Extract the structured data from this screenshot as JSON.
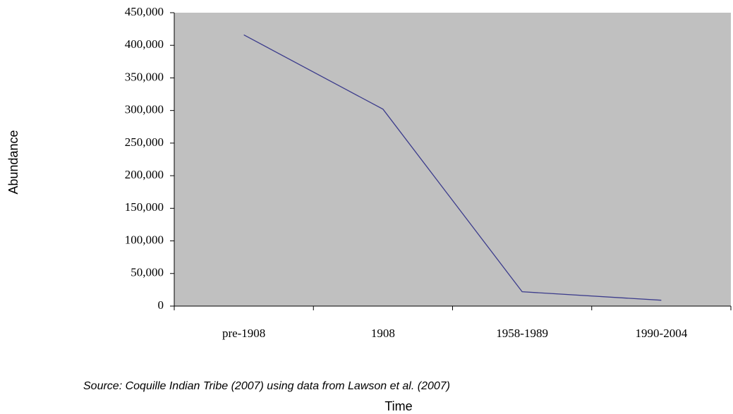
{
  "chart_data": {
    "type": "line",
    "categories": [
      "pre-1908",
      "1908",
      "1958-1989",
      "1990-2004"
    ],
    "series": [
      {
        "name": "Abundance",
        "color": "#3c3c8c",
        "values": [
          416000,
          302000,
          22000,
          9000
        ]
      }
    ],
    "ylim": [
      0,
      450000
    ],
    "yticks": [
      0,
      {
        "value": 50000,
        "label": "50,000"
      },
      {
        "value": 100000,
        "label": "100,000"
      },
      {
        "value": 150000,
        "label": "150,000"
      },
      {
        "value": 200000,
        "label": "200,000"
      },
      {
        "value": 250000,
        "label": "250,000"
      },
      {
        "value": 300000,
        "label": "300,000"
      },
      {
        "value": 350000,
        "label": "350,000"
      },
      {
        "value": 400000,
        "label": "400,000"
      },
      {
        "value": 450000,
        "label": "450,000"
      }
    ],
    "y_label": "Abundance",
    "x_label": "Time",
    "source": "Source: Coquille Indian Tribe (2007) using data from Lawson et al. (2007)",
    "background": "#c0c0c0",
    "grid": false
  }
}
